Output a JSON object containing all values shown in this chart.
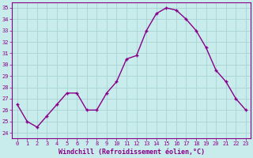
{
  "x": [
    0,
    1,
    2,
    3,
    4,
    5,
    6,
    7,
    8,
    9,
    10,
    11,
    12,
    13,
    14,
    15,
    16,
    17,
    18,
    19,
    20,
    21,
    22,
    23
  ],
  "y": [
    26.5,
    25.0,
    24.5,
    25.5,
    26.5,
    27.5,
    27.5,
    26.0,
    26.0,
    27.5,
    28.5,
    30.5,
    30.8,
    33.0,
    34.5,
    35.0,
    34.8,
    34.0,
    33.0,
    31.5,
    29.5,
    28.5,
    27.0,
    26.0
  ],
  "line_color": "#880088",
  "marker": "+",
  "marker_size": 3,
  "marker_lw": 1.0,
  "line_width": 1.0,
  "bg_color": "#c8ecec",
  "grid_color": "#a8d4d4",
  "xlabel": "Windchill (Refroidissement éolien,°C)",
  "xlabel_color": "#880088",
  "tick_color": "#880088",
  "label_fontsize": 5.0,
  "xlabel_fontsize": 6.0,
  "ylim": [
    23.5,
    35.5
  ],
  "yticks": [
    24,
    25,
    26,
    27,
    28,
    29,
    30,
    31,
    32,
    33,
    34,
    35
  ],
  "xlim": [
    -0.5,
    23.5
  ],
  "spine_color": "#880088"
}
